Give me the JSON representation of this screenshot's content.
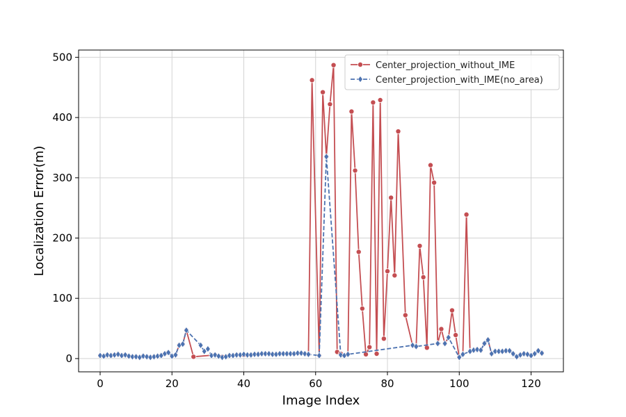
{
  "chart_data": {
    "type": "line",
    "title": "",
    "xlabel": "Image Index",
    "ylabel": "Localization Error(m)",
    "xlim": [
      -6,
      129
    ],
    "ylim": [
      -22,
      512
    ],
    "xticks": [
      0,
      20,
      40,
      60,
      80,
      100,
      120
    ],
    "yticks": [
      0,
      100,
      200,
      300,
      400,
      500
    ],
    "grid": true,
    "legend_position": "top-right",
    "series": [
      {
        "name": "Center_projection_without_IME",
        "color": "#c44e52",
        "marker": "circle",
        "linestyle": "solid",
        "points": [
          [
            0,
            5
          ],
          [
            1,
            4
          ],
          [
            2,
            6
          ],
          [
            3,
            5
          ],
          [
            4,
            6
          ],
          [
            5,
            7
          ],
          [
            6,
            5
          ],
          [
            7,
            6
          ],
          [
            8,
            4
          ],
          [
            9,
            3
          ],
          [
            10,
            3
          ],
          [
            11,
            2
          ],
          [
            12,
            4
          ],
          [
            13,
            3
          ],
          [
            14,
            2
          ],
          [
            15,
            3
          ],
          [
            16,
            4
          ],
          [
            17,
            5
          ],
          [
            18,
            8
          ],
          [
            19,
            10
          ],
          [
            20,
            4
          ],
          [
            21,
            6
          ],
          [
            22,
            22
          ],
          [
            23,
            24
          ],
          [
            24,
            47
          ],
          [
            26,
            3
          ],
          [
            32,
            6
          ],
          [
            34,
            3
          ],
          [
            36,
            5
          ],
          [
            38,
            6
          ],
          [
            40,
            6
          ],
          [
            42,
            6
          ],
          [
            44,
            7
          ],
          [
            46,
            8
          ],
          [
            48,
            7
          ],
          [
            50,
            8
          ],
          [
            52,
            8
          ],
          [
            54,
            8
          ],
          [
            56,
            9
          ],
          [
            57,
            8
          ],
          [
            58,
            7
          ],
          [
            59,
            462
          ],
          [
            61,
            5
          ],
          [
            62,
            442
          ],
          [
            63,
            335
          ],
          [
            64,
            422
          ],
          [
            65,
            487
          ],
          [
            66,
            11
          ],
          [
            67,
            8
          ],
          [
            68,
            5
          ],
          [
            69,
            7
          ],
          [
            70,
            410
          ],
          [
            71,
            312
          ],
          [
            72,
            177
          ],
          [
            73,
            83
          ],
          [
            74,
            7
          ],
          [
            75,
            19
          ],
          [
            76,
            425
          ],
          [
            77,
            8
          ],
          [
            78,
            429
          ],
          [
            79,
            33
          ],
          [
            80,
            145
          ],
          [
            81,
            267
          ],
          [
            82,
            138
          ],
          [
            83,
            377
          ],
          [
            85,
            72
          ],
          [
            87,
            22
          ],
          [
            88,
            20
          ],
          [
            89,
            187
          ],
          [
            90,
            135
          ],
          [
            91,
            18
          ],
          [
            92,
            321
          ],
          [
            93,
            292
          ],
          [
            94,
            25
          ],
          [
            95,
            49
          ],
          [
            96,
            25
          ],
          [
            97,
            35
          ],
          [
            98,
            80
          ],
          [
            99,
            39
          ],
          [
            100,
            2
          ],
          [
            101,
            7
          ],
          [
            102,
            239
          ],
          [
            103,
            12
          ],
          [
            104,
            14
          ],
          [
            105,
            15
          ],
          [
            106,
            14
          ],
          [
            107,
            25
          ],
          [
            108,
            31
          ],
          [
            109,
            8
          ],
          [
            110,
            12
          ],
          [
            111,
            12
          ],
          [
            112,
            12
          ],
          [
            113,
            13
          ],
          [
            114,
            13
          ],
          [
            115,
            8
          ],
          [
            116,
            3
          ],
          [
            117,
            6
          ],
          [
            118,
            8
          ],
          [
            119,
            7
          ],
          [
            120,
            5
          ],
          [
            121,
            8
          ],
          [
            122,
            13
          ],
          [
            123,
            9
          ]
        ]
      },
      {
        "name": "Center_projection_with_IME(no_area)",
        "color": "#4c72b0",
        "marker": "diamond",
        "linestyle": "dashed",
        "points": [
          [
            0,
            5
          ],
          [
            1,
            4
          ],
          [
            2,
            6
          ],
          [
            3,
            5
          ],
          [
            4,
            6
          ],
          [
            5,
            7
          ],
          [
            6,
            5
          ],
          [
            7,
            6
          ],
          [
            8,
            4
          ],
          [
            9,
            3
          ],
          [
            10,
            3
          ],
          [
            11,
            2
          ],
          [
            12,
            4
          ],
          [
            13,
            3
          ],
          [
            14,
            2
          ],
          [
            15,
            3
          ],
          [
            16,
            4
          ],
          [
            17,
            5
          ],
          [
            18,
            8
          ],
          [
            19,
            10
          ],
          [
            20,
            4
          ],
          [
            21,
            6
          ],
          [
            22,
            22
          ],
          [
            23,
            24
          ],
          [
            24,
            47
          ],
          [
            28,
            22
          ],
          [
            29,
            12
          ],
          [
            30,
            16
          ],
          [
            31,
            5
          ],
          [
            32,
            6
          ],
          [
            33,
            4
          ],
          [
            34,
            2
          ],
          [
            35,
            3
          ],
          [
            36,
            5
          ],
          [
            37,
            5
          ],
          [
            38,
            6
          ],
          [
            39,
            6
          ],
          [
            40,
            7
          ],
          [
            41,
            6
          ],
          [
            42,
            6
          ],
          [
            43,
            7
          ],
          [
            44,
            7
          ],
          [
            45,
            8
          ],
          [
            46,
            8
          ],
          [
            47,
            8
          ],
          [
            48,
            7
          ],
          [
            49,
            7
          ],
          [
            50,
            8
          ],
          [
            51,
            8
          ],
          [
            52,
            8
          ],
          [
            53,
            8
          ],
          [
            54,
            8
          ],
          [
            55,
            9
          ],
          [
            56,
            9
          ],
          [
            57,
            8
          ],
          [
            58,
            7
          ],
          [
            61,
            5
          ],
          [
            63,
            335
          ],
          [
            67,
            6
          ],
          [
            68,
            5
          ],
          [
            69,
            7
          ],
          [
            87,
            22
          ],
          [
            88,
            20
          ],
          [
            94,
            25
          ],
          [
            96,
            25
          ],
          [
            97,
            35
          ],
          [
            100,
            2
          ],
          [
            101,
            7
          ],
          [
            103,
            12
          ],
          [
            104,
            14
          ],
          [
            105,
            15
          ],
          [
            106,
            14
          ],
          [
            107,
            25
          ],
          [
            108,
            31
          ],
          [
            109,
            8
          ],
          [
            110,
            12
          ],
          [
            111,
            12
          ],
          [
            112,
            12
          ],
          [
            113,
            13
          ],
          [
            114,
            13
          ],
          [
            115,
            8
          ],
          [
            116,
            3
          ],
          [
            117,
            6
          ],
          [
            118,
            8
          ],
          [
            119,
            7
          ],
          [
            120,
            5
          ],
          [
            121,
            8
          ],
          [
            122,
            13
          ],
          [
            123,
            9
          ]
        ]
      }
    ]
  }
}
